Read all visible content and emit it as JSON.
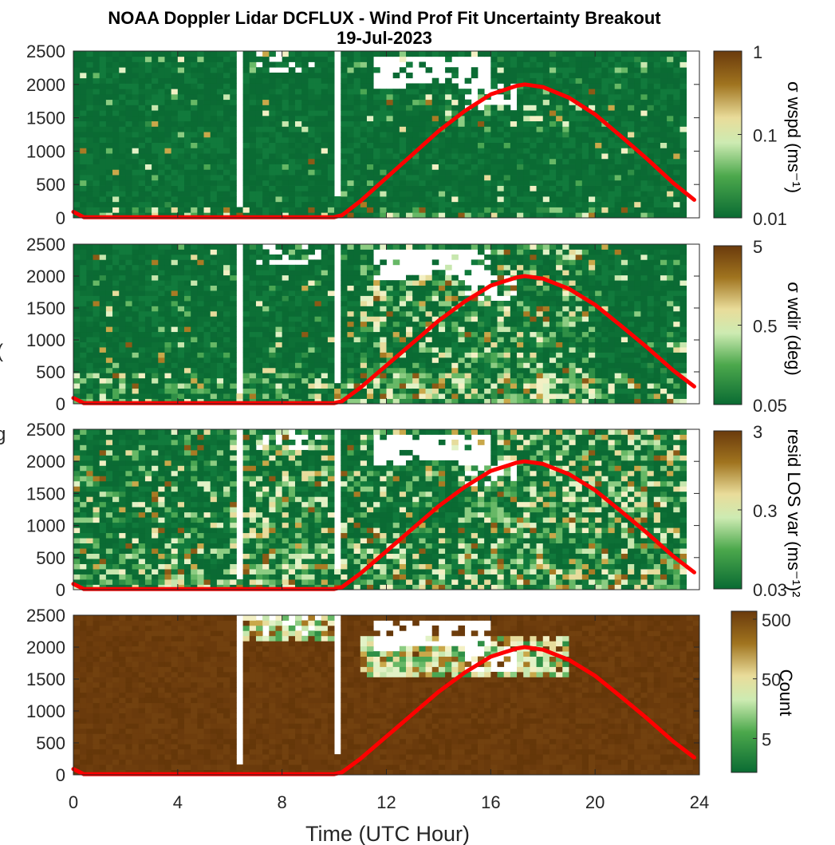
{
  "title": {
    "line1": "NOAA Doppler Lidar DCFLUX - Wind Prof Fit Uncertainty Breakout",
    "line2": "19-Jul-2023"
  },
  "xlabel": "Time (UTC Hour)",
  "ylabel_fragments": [
    "(",
    "g"
  ],
  "colors": {
    "sun_line": "#ff0000",
    "background_green": "#0a6b33",
    "background_brown": "#6a3a0c",
    "no_data": "#ffffff"
  },
  "chart_data": [
    {
      "type": "heatmap",
      "x_ticks": [
        "0",
        "4",
        "8",
        "12",
        "16",
        "20",
        "24"
      ],
      "xlim": [
        0,
        24
      ],
      "ylim": [
        0,
        2500
      ],
      "y_ticks": [
        "0",
        "500",
        "1000",
        "1500",
        "2000",
        "2500"
      ],
      "colorbar_label": "σ wspd (ms⁻¹)",
      "colorbar_scale": "log",
      "colorbar_ticks": [
        "1",
        "0.1",
        "0.01"
      ],
      "clim": [
        0.01,
        1
      ],
      "overlay_line": {
        "x": [
          0,
          0.4,
          10,
          10.3,
          11,
          12,
          13,
          14,
          15,
          16,
          17,
          17.3,
          18,
          19,
          20,
          21,
          22,
          23,
          23.8
        ],
        "y": [
          90,
          10,
          10,
          40,
          250,
          600,
          950,
          1300,
          1600,
          1850,
          1980,
          2000,
          1960,
          1800,
          1550,
          1220,
          880,
          520,
          270
        ]
      }
    },
    {
      "type": "heatmap",
      "x_ticks": [
        "0",
        "4",
        "8",
        "12",
        "16",
        "20",
        "24"
      ],
      "xlim": [
        0,
        24
      ],
      "ylim": [
        0,
        2500
      ],
      "y_ticks": [
        "0",
        "500",
        "1000",
        "1500",
        "2000",
        "2500"
      ],
      "colorbar_label": "σ wdir (deg)",
      "colorbar_scale": "log",
      "colorbar_ticks": [
        "5",
        "0.5",
        "0.05"
      ],
      "clim": [
        0.05,
        5
      ]
    },
    {
      "type": "heatmap",
      "x_ticks": [
        "0",
        "4",
        "8",
        "12",
        "16",
        "20",
        "24"
      ],
      "xlim": [
        0,
        24
      ],
      "ylim": [
        0,
        2500
      ],
      "y_ticks": [
        "0",
        "500",
        "1000",
        "1500",
        "2000",
        "2500"
      ],
      "colorbar_label": "resid LOS var (ms⁻¹)²",
      "colorbar_scale": "log",
      "colorbar_ticks": [
        "3",
        "0.3",
        "0.03"
      ],
      "clim": [
        0.03,
        3
      ]
    },
    {
      "type": "heatmap",
      "x_ticks": [
        "0",
        "4",
        "8",
        "12",
        "16",
        "20",
        "24"
      ],
      "xlim": [
        0,
        24
      ],
      "ylim": [
        0,
        2500
      ],
      "y_ticks": [
        "0",
        "500",
        "1000",
        "1500",
        "2000",
        "2500"
      ],
      "colorbar_label": "Count",
      "colorbar_scale": "log",
      "colorbar_ticks": [
        "500",
        "50",
        "5"
      ]
    }
  ]
}
